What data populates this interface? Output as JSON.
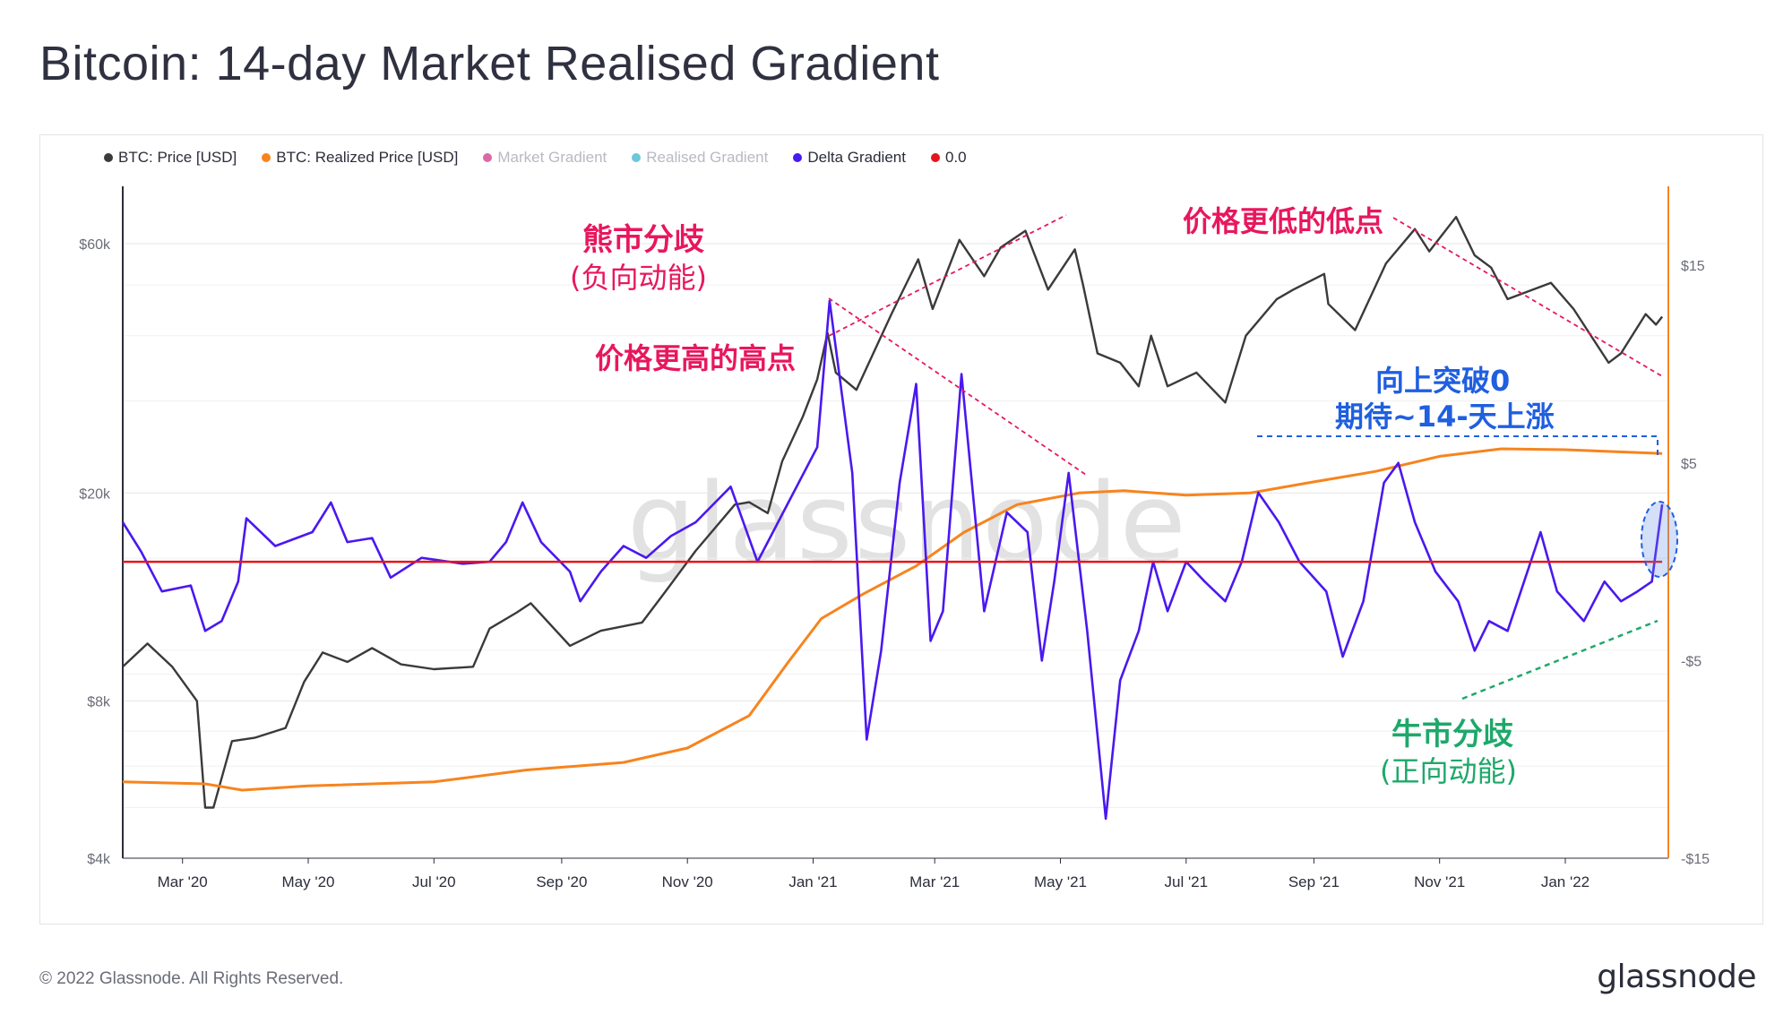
{
  "title": "Bitcoin: 14-day Market Realised Gradient",
  "watermark": "glassnode",
  "footer": {
    "copyright": "© 2022 Glassnode. All Rights Reserved.",
    "logo": "glassnode"
  },
  "legend": [
    {
      "label": "BTC: Price [USD]",
      "color": "#3a3a3a",
      "muted": false
    },
    {
      "label": "BTC: Realized Price [USD]",
      "color": "#f7841e",
      "muted": false
    },
    {
      "label": "Market Gradient",
      "color": "#d96aa4",
      "muted": true
    },
    {
      "label": "Realised Gradient",
      "color": "#6cc7d9",
      "muted": true
    },
    {
      "label": "Delta Gradient",
      "color": "#4a18f0",
      "muted": false
    },
    {
      "label": "0.0",
      "color": "#e8141b",
      "muted": false
    }
  ],
  "annotations": {
    "bear_div": "熊市分歧",
    "bear_div_sub": "(负向动能)",
    "higher_high": "价格更高的高点",
    "lower_low": "价格更低的低点",
    "break_zero_1": "向上突破0",
    "break_zero_2": "期待~14-天上涨",
    "bull_div": "牛市分歧",
    "bull_div_sub": "(正向动能)"
  },
  "colors": {
    "pink": "#e8175d",
    "blue": "#1f5fe0",
    "green": "#1ea86a"
  },
  "chart_data": {
    "type": "line",
    "x_ticks": [
      "Mar '20",
      "May '20",
      "Jul '20",
      "Sep '20",
      "Nov '20",
      "Jan '21",
      "Mar '21",
      "May '21",
      "Jul '21",
      "Sep '21",
      "Nov '21",
      "Jan '22"
    ],
    "y_left_ticks": [
      "$60k",
      "$20k",
      "$8k",
      "$4k"
    ],
    "y_left_scale": "log",
    "y_right_ticks": [
      "$15",
      "$5",
      "-$5",
      "-$15"
    ],
    "y_right_range": [
      -15,
      19
    ],
    "x_range": [
      "2020-02-01",
      "2022-02-20"
    ],
    "series": [
      {
        "name": "BTC: Price [USD]",
        "axis": "left",
        "color": "#3a3a3a",
        "points": [
          [
            "2020-02-01",
            9300
          ],
          [
            "2020-02-13",
            10300
          ],
          [
            "2020-02-25",
            9300
          ],
          [
            "2020-03-08",
            8000
          ],
          [
            "2020-03-12",
            5000
          ],
          [
            "2020-03-16",
            5000
          ],
          [
            "2020-03-25",
            6700
          ],
          [
            "2020-04-05",
            6800
          ],
          [
            "2020-04-20",
            7100
          ],
          [
            "2020-04-29",
            8700
          ],
          [
            "2020-05-08",
            9900
          ],
          [
            "2020-05-20",
            9500
          ],
          [
            "2020-06-01",
            10100
          ],
          [
            "2020-06-15",
            9400
          ],
          [
            "2020-07-01",
            9200
          ],
          [
            "2020-07-20",
            9300
          ],
          [
            "2020-07-28",
            11000
          ],
          [
            "2020-08-10",
            11800
          ],
          [
            "2020-08-17",
            12300
          ],
          [
            "2020-09-05",
            10200
          ],
          [
            "2020-09-20",
            10900
          ],
          [
            "2020-10-10",
            11300
          ],
          [
            "2020-10-21",
            12900
          ],
          [
            "2020-11-05",
            15500
          ],
          [
            "2020-11-24",
            19000
          ],
          [
            "2020-12-01",
            19200
          ],
          [
            "2020-12-10",
            18300
          ],
          [
            "2020-12-17",
            23000
          ],
          [
            "2020-12-27",
            28000
          ],
          [
            "2021-01-03",
            33000
          ],
          [
            "2021-01-08",
            40500
          ],
          [
            "2021-01-12",
            34000
          ],
          [
            "2021-01-22",
            31500
          ],
          [
            "2021-02-08",
            44000
          ],
          [
            "2021-02-21",
            56000
          ],
          [
            "2021-02-28",
            45000
          ],
          [
            "2021-03-13",
            61000
          ],
          [
            "2021-03-25",
            52000
          ],
          [
            "2021-04-02",
            59000
          ],
          [
            "2021-04-14",
            63500
          ],
          [
            "2021-04-25",
            49000
          ],
          [
            "2021-05-08",
            58500
          ],
          [
            "2021-05-12",
            50000
          ],
          [
            "2021-05-19",
            37000
          ],
          [
            "2021-05-30",
            35500
          ],
          [
            "2021-06-08",
            32000
          ],
          [
            "2021-06-14",
            40000
          ],
          [
            "2021-06-22",
            32000
          ],
          [
            "2021-07-06",
            34000
          ],
          [
            "2021-07-20",
            29800
          ],
          [
            "2021-07-30",
            40000
          ],
          [
            "2021-08-14",
            47000
          ],
          [
            "2021-08-22",
            49000
          ],
          [
            "2021-09-06",
            52500
          ],
          [
            "2021-09-08",
            46000
          ],
          [
            "2021-09-21",
            41000
          ],
          [
            "2021-10-06",
            55000
          ],
          [
            "2021-10-20",
            64000
          ],
          [
            "2021-10-27",
            58000
          ],
          [
            "2021-11-09",
            67500
          ],
          [
            "2021-11-18",
            57000
          ],
          [
            "2021-11-26",
            54000
          ],
          [
            "2021-12-04",
            47000
          ],
          [
            "2021-12-25",
            50500
          ],
          [
            "2022-01-05",
            45000
          ],
          [
            "2022-01-22",
            35500
          ],
          [
            "2022-01-28",
            37000
          ],
          [
            "2022-02-09",
            44000
          ],
          [
            "2022-02-14",
            42000
          ],
          [
            "2022-02-17",
            43500
          ]
        ]
      },
      {
        "name": "BTC: Realized Price [USD]",
        "axis": "left",
        "color": "#f7841e",
        "points": [
          [
            "2020-02-01",
            5600
          ],
          [
            "2020-03-12",
            5550
          ],
          [
            "2020-03-30",
            5400
          ],
          [
            "2020-05-01",
            5500
          ],
          [
            "2020-07-01",
            5600
          ],
          [
            "2020-08-15",
            5900
          ],
          [
            "2020-10-01",
            6100
          ],
          [
            "2020-11-01",
            6500
          ],
          [
            "2020-12-01",
            7500
          ],
          [
            "2020-12-20",
            9500
          ],
          [
            "2021-01-05",
            11500
          ],
          [
            "2021-01-25",
            12800
          ],
          [
            "2021-02-20",
            14500
          ],
          [
            "2021-03-15",
            16800
          ],
          [
            "2021-04-10",
            19000
          ],
          [
            "2021-05-10",
            20000
          ],
          [
            "2021-06-01",
            20200
          ],
          [
            "2021-07-01",
            19800
          ],
          [
            "2021-08-01",
            20000
          ],
          [
            "2021-09-01",
            21000
          ],
          [
            "2021-10-01",
            22000
          ],
          [
            "2021-11-01",
            23500
          ],
          [
            "2021-12-01",
            24300
          ],
          [
            "2022-01-01",
            24200
          ],
          [
            "2022-02-17",
            23800
          ]
        ]
      },
      {
        "name": "Delta Gradient",
        "axis": "right",
        "color": "#4a18f0",
        "points": [
          [
            "2020-02-01",
            2.0
          ],
          [
            "2020-02-10",
            0.5
          ],
          [
            "2020-02-20",
            -1.5
          ],
          [
            "2020-03-05",
            -1.2
          ],
          [
            "2020-03-12",
            -3.5
          ],
          [
            "2020-03-20",
            -3.0
          ],
          [
            "2020-03-28",
            -1.0
          ],
          [
            "2020-04-01",
            2.2
          ],
          [
            "2020-04-15",
            0.8
          ],
          [
            "2020-05-03",
            1.5
          ],
          [
            "2020-05-12",
            3.0
          ],
          [
            "2020-05-20",
            1.0
          ],
          [
            "2020-06-01",
            1.2
          ],
          [
            "2020-06-10",
            -0.8
          ],
          [
            "2020-06-25",
            0.2
          ],
          [
            "2020-07-15",
            -0.1
          ],
          [
            "2020-07-28",
            0.0
          ],
          [
            "2020-08-05",
            1.0
          ],
          [
            "2020-08-13",
            3.0
          ],
          [
            "2020-08-22",
            1.0
          ],
          [
            "2020-09-05",
            -0.5
          ],
          [
            "2020-09-10",
            -2.0
          ],
          [
            "2020-09-20",
            -0.5
          ],
          [
            "2020-10-01",
            0.8
          ],
          [
            "2020-10-12",
            0.2
          ],
          [
            "2020-10-24",
            1.3
          ],
          [
            "2020-11-05",
            2.0
          ],
          [
            "2020-11-22",
            3.8
          ],
          [
            "2020-12-05",
            0.0
          ],
          [
            "2020-12-20",
            3.0
          ],
          [
            "2021-01-03",
            5.8
          ],
          [
            "2021-01-09",
            13.2
          ],
          [
            "2021-01-20",
            4.5
          ],
          [
            "2021-01-27",
            -9.0
          ],
          [
            "2021-02-03",
            -4.5
          ],
          [
            "2021-02-12",
            4.0
          ],
          [
            "2021-02-20",
            9.0
          ],
          [
            "2021-02-27",
            -4.0
          ],
          [
            "2021-03-05",
            -2.5
          ],
          [
            "2021-03-14",
            9.5
          ],
          [
            "2021-03-25",
            -2.5
          ],
          [
            "2021-04-05",
            2.5
          ],
          [
            "2021-04-15",
            1.5
          ],
          [
            "2021-04-22",
            -5.0
          ],
          [
            "2021-04-28",
            -1.0
          ],
          [
            "2021-05-05",
            4.5
          ],
          [
            "2021-05-14",
            -3.5
          ],
          [
            "2021-05-23",
            -13.0
          ],
          [
            "2021-05-30",
            -6.0
          ],
          [
            "2021-06-08",
            -3.5
          ],
          [
            "2021-06-15",
            0.0
          ],
          [
            "2021-06-22",
            -2.5
          ],
          [
            "2021-07-01",
            0.0
          ],
          [
            "2021-07-10",
            -1.0
          ],
          [
            "2021-07-20",
            -2.0
          ],
          [
            "2021-07-28",
            0.0
          ],
          [
            "2021-08-05",
            3.5
          ],
          [
            "2021-08-15",
            2.0
          ],
          [
            "2021-08-25",
            0.0
          ],
          [
            "2021-09-07",
            -1.5
          ],
          [
            "2021-09-15",
            -4.8
          ],
          [
            "2021-09-25",
            -2.0
          ],
          [
            "2021-10-05",
            4.0
          ],
          [
            "2021-10-12",
            5.0
          ],
          [
            "2021-10-20",
            2.0
          ],
          [
            "2021-10-30",
            -0.5
          ],
          [
            "2021-11-10",
            -2.0
          ],
          [
            "2021-11-18",
            -4.5
          ],
          [
            "2021-11-25",
            -3.0
          ],
          [
            "2021-12-04",
            -3.5
          ],
          [
            "2021-12-12",
            -1.0
          ],
          [
            "2021-12-20",
            1.5
          ],
          [
            "2021-12-28",
            -1.5
          ],
          [
            "2022-01-10",
            -3.0
          ],
          [
            "2022-01-20",
            -1.0
          ],
          [
            "2022-01-28",
            -2.0
          ],
          [
            "2022-02-05",
            -1.5
          ],
          [
            "2022-02-12",
            -1.0
          ],
          [
            "2022-02-17",
            2.9
          ]
        ]
      },
      {
        "name": "0.0",
        "axis": "right",
        "color": "#e8141b",
        "points": [
          [
            "2020-02-01",
            0
          ],
          [
            "2022-02-17",
            0
          ]
        ]
      }
    ],
    "grid": true,
    "legend_position": "top-left"
  }
}
